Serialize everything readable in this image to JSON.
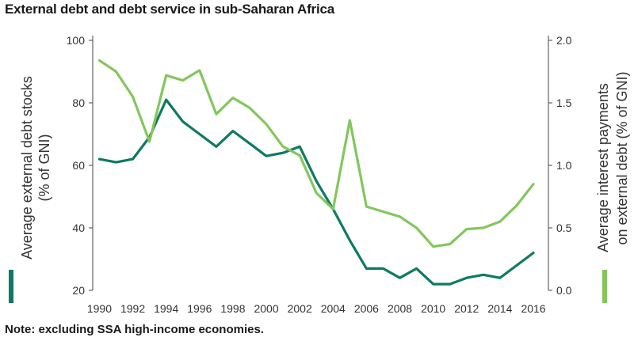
{
  "title": "External debt and debt service in sub-Saharan Africa",
  "note": "Note: excluding SSA high-income economies.",
  "chart_data": {
    "type": "line",
    "x": [
      1990,
      1991,
      1992,
      1993,
      1994,
      1995,
      1996,
      1997,
      1998,
      1999,
      2000,
      2001,
      2002,
      2003,
      2004,
      2005,
      2006,
      2007,
      2008,
      2009,
      2010,
      2011,
      2012,
      2013,
      2014,
      2015,
      2016
    ],
    "x_ticks": [
      "1990",
      "1992",
      "1994",
      "1996",
      "1998",
      "2000",
      "2002",
      "2004",
      "2006",
      "2008",
      "2010",
      "2012",
      "2014",
      "2016"
    ],
    "left_axis": {
      "label_line1": "Average external debt stocks",
      "label_line2": "(% of GNI)",
      "ylim": [
        20,
        100
      ],
      "ticks": [
        "20",
        "40",
        "60",
        "80",
        "100"
      ]
    },
    "right_axis": {
      "label_line1": "Average interest payments",
      "label_line2": "on external debt  (% of GNI)",
      "ylim": [
        0,
        2
      ],
      "ticks": [
        "0.0",
        "0.5",
        "1.0",
        "1.5",
        "2.0"
      ]
    },
    "series": [
      {
        "axis": "left",
        "color": "#0e7a62",
        "values": [
          62,
          61,
          62,
          69,
          81,
          74,
          70,
          66,
          71,
          67,
          63,
          64,
          66,
          55,
          46,
          36,
          27,
          27,
          24,
          27,
          22,
          22,
          24,
          25,
          24,
          28,
          32
        ]
      },
      {
        "axis": "right",
        "color": "#84c65e",
        "values": [
          1.84,
          1.75,
          1.55,
          1.19,
          1.72,
          1.68,
          1.76,
          1.41,
          1.54,
          1.46,
          1.33,
          1.15,
          1.08,
          0.78,
          0.65,
          1.36,
          0.67,
          0.63,
          0.59,
          0.5,
          0.35,
          0.37,
          0.49,
          0.5,
          0.55,
          0.68,
          0.85
        ]
      }
    ]
  }
}
